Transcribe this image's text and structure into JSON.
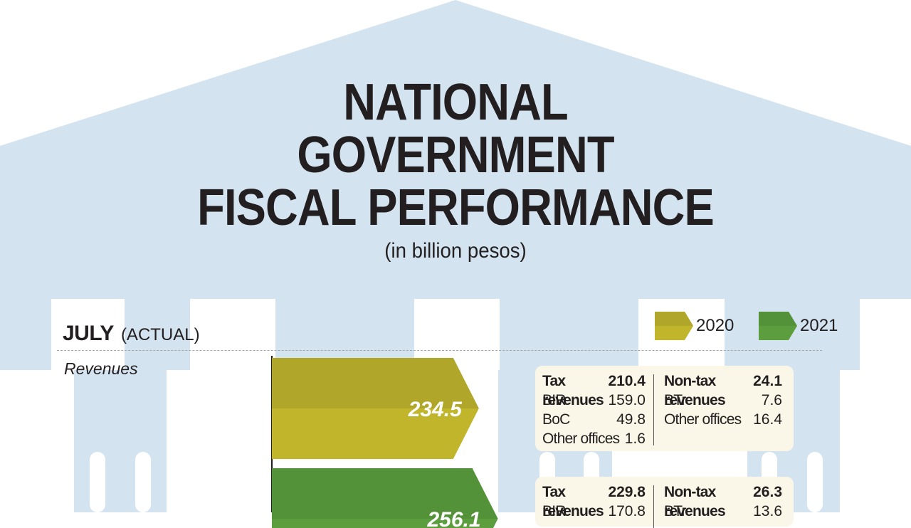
{
  "title_lines": [
    "NATIONAL",
    "GOVERNMENT",
    "FISCAL PERFORMANCE"
  ],
  "subtitle": "(in billion pesos)",
  "period": {
    "month": "JULY",
    "note": "(ACTUAL)"
  },
  "legend": [
    {
      "label": "2020",
      "color": "#c0b52b"
    },
    {
      "label": "2021",
      "color": "#5c9e3e"
    }
  ],
  "colors": {
    "building": "#d3e3ef",
    "card": "#faf7e8",
    "bar_2020": "#c0b52b",
    "bar_2020_top": "#b0a62a",
    "bar_2021": "#5c9e3e",
    "bar_2021_top": "#54923a"
  },
  "chart_data": {
    "type": "bar",
    "title": "NATIONAL GOVERNMENT FISCAL PERFORMANCE",
    "subtitle": "(in billion pesos)",
    "categories": [
      "Revenues"
    ],
    "series": [
      {
        "name": "2020",
        "values": [
          234.5
        ],
        "label": "234.5"
      },
      {
        "name": "2021",
        "values": [
          256.1
        ],
        "label": "256.1"
      }
    ],
    "breakdown": [
      {
        "year": "2020",
        "tax": {
          "label": "Tax revenues",
          "value": "210.4",
          "items": [
            {
              "label": "BIR",
              "value": "159.0"
            },
            {
              "label": "BoC",
              "value": "49.8"
            },
            {
              "label": "Other offices",
              "value": "1.6"
            }
          ]
        },
        "nontax": {
          "label": "Non-tax revenues",
          "value": "24.1",
          "items": [
            {
              "label": "BTr",
              "value": "7.6"
            },
            {
              "label": "Other offices",
              "value": "16.4"
            }
          ]
        }
      },
      {
        "year": "2021",
        "tax": {
          "label": "Tax revenues",
          "value": "229.8",
          "items": [
            {
              "label": "BIR",
              "value": "170.8"
            }
          ]
        },
        "nontax": {
          "label": "Non-tax revenues",
          "value": "26.3",
          "items": [
            {
              "label": "BTr",
              "value": "13.6"
            }
          ]
        }
      }
    ]
  }
}
